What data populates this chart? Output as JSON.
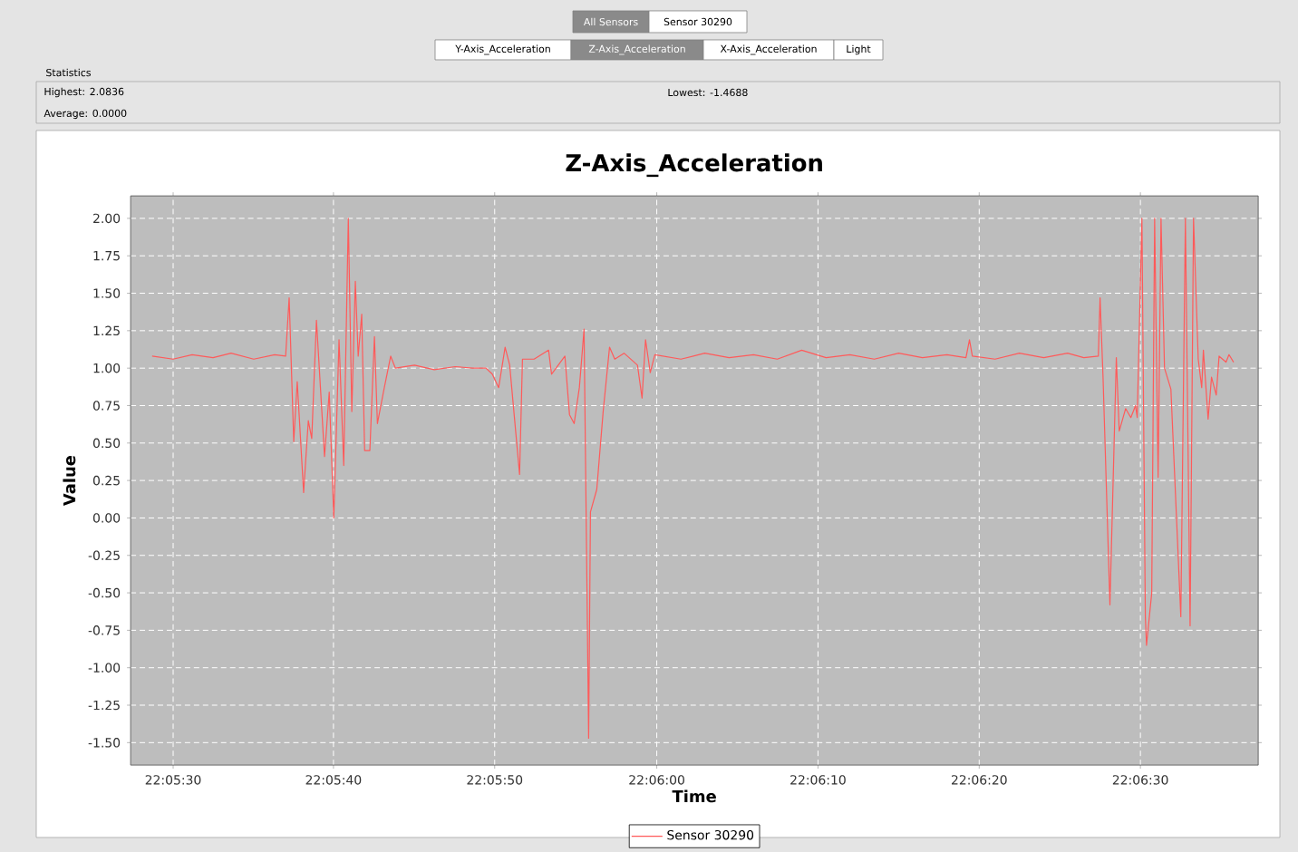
{
  "chart_data": {
    "type": "line",
    "title": "Z-Axis_Acceleration",
    "xlabel": "Time",
    "ylabel": "Value",
    "annotations": [
      "All Sensors",
      "Sensor 30290",
      "Y-Axis_Acceleration",
      "Z-Axis_Acceleration",
      "X-Axis_Acceleration",
      "Light",
      "Statistics",
      "Highest: 2.0836",
      "Lowest: -1.4688",
      "Average: 0.0000"
    ],
    "xlim": [
      22.09094,
      22.11036
    ],
    "ylim": [
      -1.65,
      2.15
    ],
    "xticks": [
      {
        "value": 22.09167,
        "label": "22:05:30"
      },
      {
        "value": 22.09444,
        "label": "22:05:40"
      },
      {
        "value": 22.09722,
        "label": "22:05:50"
      },
      {
        "value": 22.1,
        "label": "22:06:00"
      },
      {
        "value": 22.10278,
        "label": "22:06:10"
      },
      {
        "value": 22.10556,
        "label": "22:06:20"
      },
      {
        "value": 22.10833,
        "label": "22:06:30"
      }
    ],
    "yticks": [
      {
        "value": -1.5,
        "label": "-1.50"
      },
      {
        "value": -1.25,
        "label": "-1.25"
      },
      {
        "value": -1,
        "label": "-1.00"
      },
      {
        "value": -0.75,
        "label": "-0.75"
      },
      {
        "value": -0.5,
        "label": "-0.50"
      },
      {
        "value": -0.25,
        "label": "-0.25"
      },
      {
        "value": 0,
        "label": "0.00"
      },
      {
        "value": 0.25,
        "label": "0.25"
      },
      {
        "value": 0.5,
        "label": "0.50"
      },
      {
        "value": 0.75,
        "label": "0.75"
      },
      {
        "value": 1,
        "label": "1.00"
      },
      {
        "value": 1.25,
        "label": "1.25"
      },
      {
        "value": 1.5,
        "label": "1.50"
      },
      {
        "value": 1.75,
        "label": "1.75"
      },
      {
        "value": 2,
        "label": "2.00"
      }
    ],
    "grid": true,
    "legend": "bottom",
    "marker": "none",
    "series": [
      {
        "name": "Sensor 30290",
        "color": "#ff5a5a",
        "x": [
          22.09131,
          22.09167,
          22.092,
          22.09236,
          22.09267,
          22.09306,
          22.09342,
          22.09361,
          22.09367,
          22.09375,
          22.09381,
          22.09392,
          22.094,
          22.09406,
          22.09414,
          22.09428,
          22.09436,
          22.09444,
          22.09453,
          22.09461,
          22.09469,
          22.09475,
          22.09481,
          22.09486,
          22.09492,
          22.09497,
          22.09506,
          22.09514,
          22.09519,
          22.09531,
          22.09542,
          22.0955,
          22.09583,
          22.09617,
          22.09653,
          22.09683,
          22.09706,
          22.09717,
          22.09728,
          22.09739,
          22.09747,
          22.09764,
          22.09769,
          22.09789,
          22.09814,
          22.09819,
          22.09842,
          22.0985,
          22.09858,
          22.09867,
          22.09875,
          22.09883,
          22.09886,
          22.09897,
          22.09908,
          22.09919,
          22.09928,
          22.09944,
          22.09967,
          22.09975,
          22.09981,
          22.09989,
          22.09997,
          22.10042,
          22.10083,
          22.10125,
          22.10167,
          22.10208,
          22.1025,
          22.10292,
          22.10333,
          22.10375,
          22.10417,
          22.10458,
          22.105,
          22.10533,
          22.10539,
          22.10544,
          22.10583,
          22.10625,
          22.10667,
          22.10708,
          22.10736,
          22.10761,
          22.10764,
          22.10769,
          22.10781,
          22.10792,
          22.10797,
          22.10808,
          22.10817,
          22.10825,
          22.10828,
          22.10836,
          22.10842,
          22.10844,
          22.10853,
          22.10858,
          22.10864,
          22.10869,
          22.10875,
          22.10886,
          22.10903,
          22.10911,
          22.10919,
          22.10925,
          22.10933,
          22.10939,
          22.10942,
          22.1095,
          22.10956,
          22.10964,
          22.10969,
          22.10981,
          22.10986,
          22.10994
        ],
        "values": [
          1.08,
          1.06,
          1.09,
          1.07,
          1.1,
          1.06,
          1.09,
          1.08,
          1.47,
          0.51,
          0.91,
          0.17,
          0.65,
          0.53,
          1.32,
          0.41,
          0.84,
          0.0,
          1.19,
          0.35,
          2.0,
          0.71,
          1.58,
          1.08,
          1.36,
          0.45,
          0.45,
          1.21,
          0.63,
          0.87,
          1.08,
          1.0,
          1.02,
          0.99,
          1.01,
          1.0,
          1.0,
          0.96,
          0.87,
          1.14,
          1.02,
          0.29,
          1.06,
          1.06,
          1.12,
          0.96,
          1.08,
          0.69,
          0.63,
          0.87,
          1.26,
          -1.47,
          0.04,
          0.19,
          0.71,
          1.14,
          1.06,
          1.1,
          1.02,
          0.8,
          1.19,
          0.97,
          1.09,
          1.06,
          1.1,
          1.07,
          1.09,
          1.06,
          1.12,
          1.07,
          1.09,
          1.06,
          1.1,
          1.07,
          1.09,
          1.07,
          1.19,
          1.08,
          1.06,
          1.1,
          1.07,
          1.1,
          1.07,
          1.08,
          1.47,
          0.94,
          -0.58,
          1.07,
          0.58,
          0.73,
          0.67,
          0.75,
          0.67,
          2.0,
          -0.66,
          -0.85,
          -0.5,
          2.0,
          0.27,
          2.0,
          1.0,
          0.86,
          -0.66,
          2.0,
          -0.72,
          2.0,
          1.06,
          0.87,
          1.12,
          0.66,
          0.94,
          0.82,
          1.08,
          1.04,
          1.09,
          1.04
        ]
      }
    ]
  }
}
